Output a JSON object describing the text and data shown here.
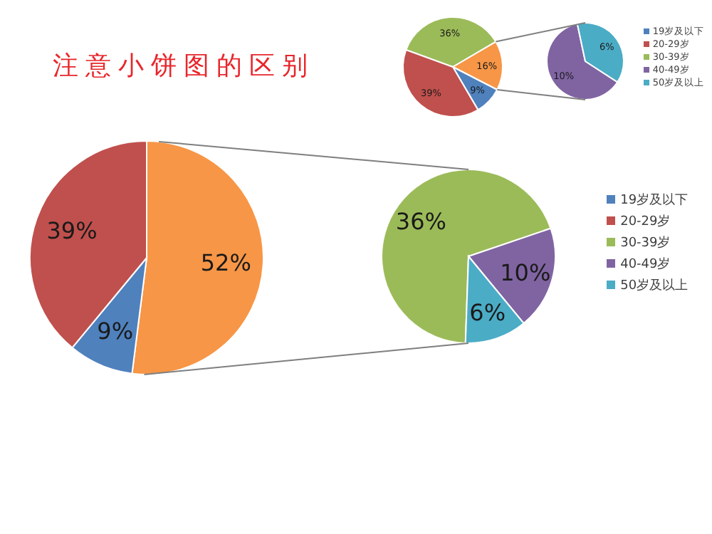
{
  "chart_data": [
    {
      "type": "pie",
      "title": "注意小饼图的区别",
      "categories": [
        null,
        "19岁及以下",
        "20-29岁"
      ],
      "values": [
        52,
        9,
        39
      ],
      "colors": [
        "#f79646",
        "#4f81bd",
        "#c0504d"
      ],
      "value_labels": [
        "52%",
        "9%",
        "39%"
      ],
      "legend": "right"
    },
    {
      "type": "pie",
      "categories": [
        "30-39岁",
        "40-49岁",
        "50岁及以上"
      ],
      "values": [
        36,
        10,
        6
      ],
      "colors": [
        "#9bbb59",
        "#8064a2",
        "#4bacc6"
      ],
      "value_labels": [
        "36%",
        "10%",
        "6%"
      ],
      "legend": "right"
    },
    {
      "type": "pie",
      "categories": [
        "30-39岁",
        null,
        "19岁及以下",
        "20-29岁"
      ],
      "values": [
        36,
        16,
        9,
        39
      ],
      "colors": [
        "#9bbb59",
        "#f79646",
        "#4f81bd",
        "#c0504d"
      ],
      "value_labels": [
        "36%",
        "16%",
        "9%",
        "39%"
      ],
      "legend": "right"
    },
    {
      "type": "pie",
      "categories": [
        "40-49岁",
        "50岁及以上"
      ],
      "values": [
        10,
        6
      ],
      "colors": [
        "#8064a2",
        "#4bacc6"
      ],
      "value_labels": [
        "10%",
        "6%"
      ],
      "legend": "right"
    }
  ]
}
